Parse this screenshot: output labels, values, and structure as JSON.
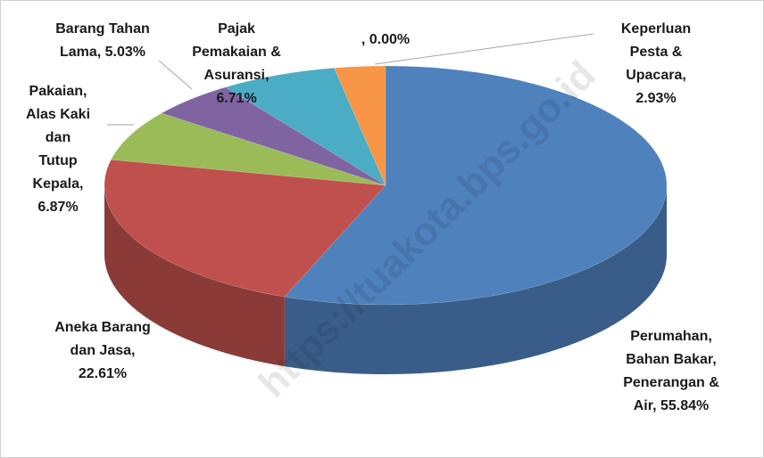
{
  "chart_data": {
    "type": "pie",
    "three_d": true,
    "values": [
      55.84,
      22.61,
      6.87,
      5.03,
      6.71,
      2.93,
      0.0
    ],
    "colors": [
      "#4f81bd",
      "#c0504d",
      "#9bbb59",
      "#8064a2",
      "#4bacc6",
      "#f79646",
      "#7f7f7f"
    ],
    "value_labels": [
      [
        "Perumahan,",
        "Bahan Bakar,",
        "Penerangan &",
        "Air, 55.84%"
      ],
      [
        "Aneka Barang",
        "dan Jasa,",
        "22.61%"
      ],
      [
        "Pakaian,",
        "Alas Kaki",
        "dan",
        "Tutup",
        "Kepala,",
        "6.87%"
      ],
      [
        "Barang Tahan",
        "Lama, 5.03%"
      ],
      [
        "Pajak",
        "Pemakaian &",
        "Asuransi,",
        "6.71%"
      ],
      [
        "Keperluan",
        "Pesta &",
        "Upacara,",
        "2.93%"
      ],
      [
        ", 0.00%"
      ]
    ],
    "watermark": "https://tuakota.bps.go.id"
  }
}
